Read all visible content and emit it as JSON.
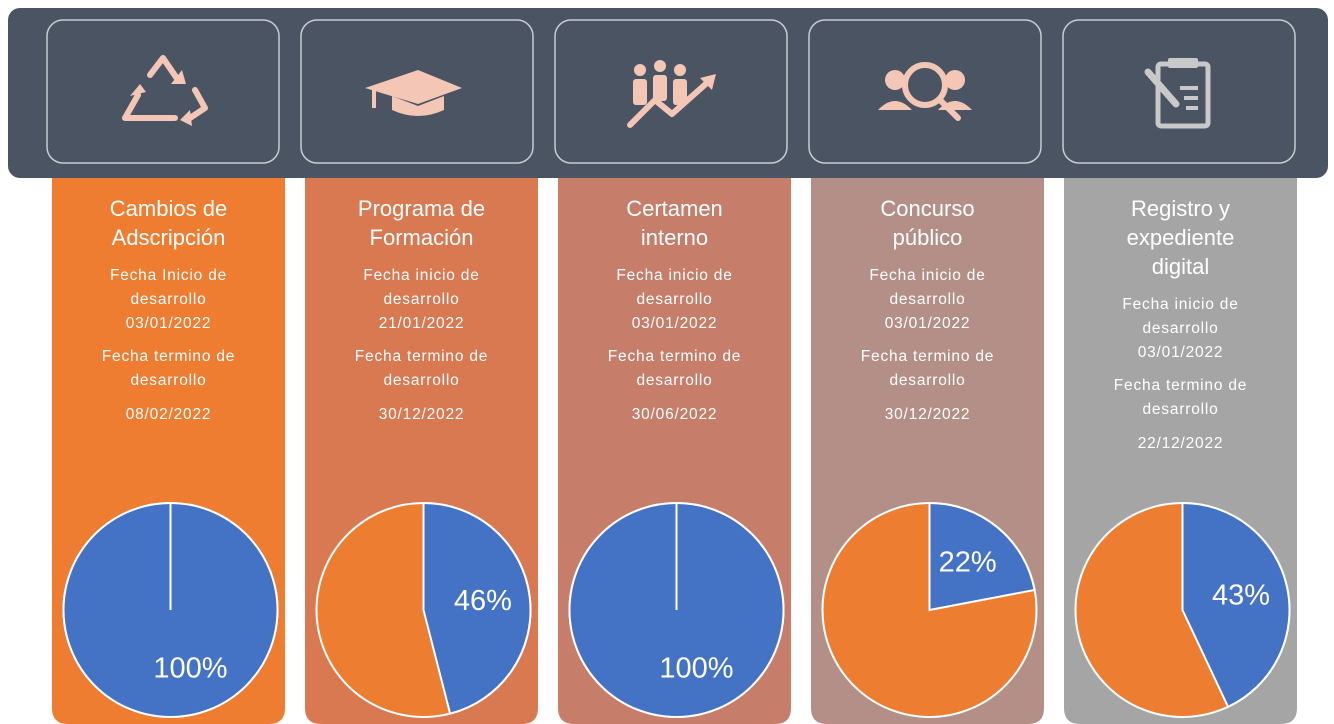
{
  "cards": [
    {
      "title": [
        "Cambios de",
        "Adscripción"
      ],
      "start": [
        "Fecha Inicio de",
        "desarrollo",
        "03/01/2022"
      ],
      "end": [
        "Fecha termino de",
        "desarrollo"
      ],
      "end_date": "08/02/2022",
      "value": 100,
      "value_label": "100%",
      "color": "#ee7d31"
    },
    {
      "title": [
        "Programa de",
        "Formación"
      ],
      "start": [
        "Fecha inicio de",
        "desarrollo",
        "21/01/2022"
      ],
      "end": [
        "Fecha termino de",
        "desarrollo"
      ],
      "end_date": "30/12/2022",
      "value": 46,
      "value_label": "46%",
      "color": "#d97952"
    },
    {
      "title": [
        "Certamen",
        "interno"
      ],
      "start": [
        "Fecha inicio de",
        "desarrollo",
        "03/01/2022"
      ],
      "end": [
        "Fecha termino de",
        "desarrollo"
      ],
      "end_date": "30/06/2022",
      "value": 100,
      "value_label": "100%",
      "color": "#c67e6b"
    },
    {
      "title": [
        "Concurso",
        "público"
      ],
      "start": [
        "Fecha inicio de",
        "desarrollo",
        "03/01/2022"
      ],
      "end": [
        "Fecha termino de",
        "desarrollo"
      ],
      "end_date": "30/12/2022",
      "value": 22,
      "value_label": "22%",
      "color": "#b38f87"
    },
    {
      "title": [
        "Registro y",
        "expediente",
        "digital"
      ],
      "start": [
        "Fecha inicio de",
        "desarrollo",
        "03/01/2022"
      ],
      "end": [
        "Fecha termino de",
        "desarrollo"
      ],
      "end_date": "22/12/2022",
      "value": 43,
      "value_label": "43%",
      "color": "#a5a5a5"
    }
  ],
  "pie_value_color": "#4472c4",
  "pie_rest_color": "#ed7d31"
}
